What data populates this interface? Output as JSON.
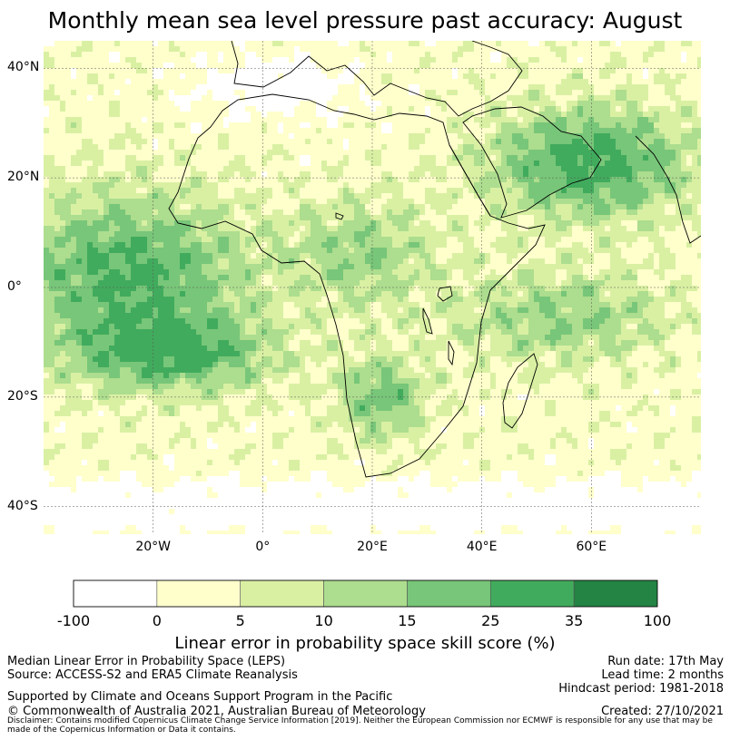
{
  "title": "Monthly mean sea level pressure past accuracy: August",
  "map": {
    "lat_labels": [
      "40°N",
      "20°N",
      "0°",
      "20°S",
      "40°S"
    ],
    "lat_values": [
      40,
      20,
      0,
      -20,
      -40
    ],
    "lon_labels": [
      "20°W",
      "0°",
      "20°E",
      "40°E",
      "60°E"
    ],
    "lon_values": [
      -20,
      0,
      20,
      40,
      60
    ],
    "extent": {
      "lon_min": -40,
      "lon_max": 80,
      "lat_min": -45,
      "lat_max": 45
    }
  },
  "colorbar": {
    "boundaries": [
      "-100",
      "0",
      "5",
      "10",
      "15",
      "25",
      "35",
      "100"
    ],
    "colors": [
      "#ffffff",
      "#ffffcc",
      "#d9f0a3",
      "#addd8e",
      "#78c679",
      "#41ab5d",
      "#238443"
    ],
    "label": "Linear error in probability space skill score (%)"
  },
  "footer": {
    "left_line1": "Median Linear Error in Probability Space (LEPS)",
    "left_line2": "Source: ACCESS-S2 and ERA5 Climate Reanalysis",
    "right_line1": "Run date: 17th May",
    "right_line2": "Lead time: 2 months",
    "right_line3": "Hindcast period: 1981-2018",
    "supported": "Supported by Climate and Oceans Support Program in the Pacific",
    "copyright": "© Commonwealth of Australia 2021, Australian Bureau of Meteorology",
    "created": "Created: 27/10/2021",
    "disclaimer": "Disclaimer: Contains modified Copernicus Climate Change Service Information [2019]. Neither the European Commission nor ECMWF is responsible for any use that may be made of the Copernicus Information or Data it contains."
  }
}
